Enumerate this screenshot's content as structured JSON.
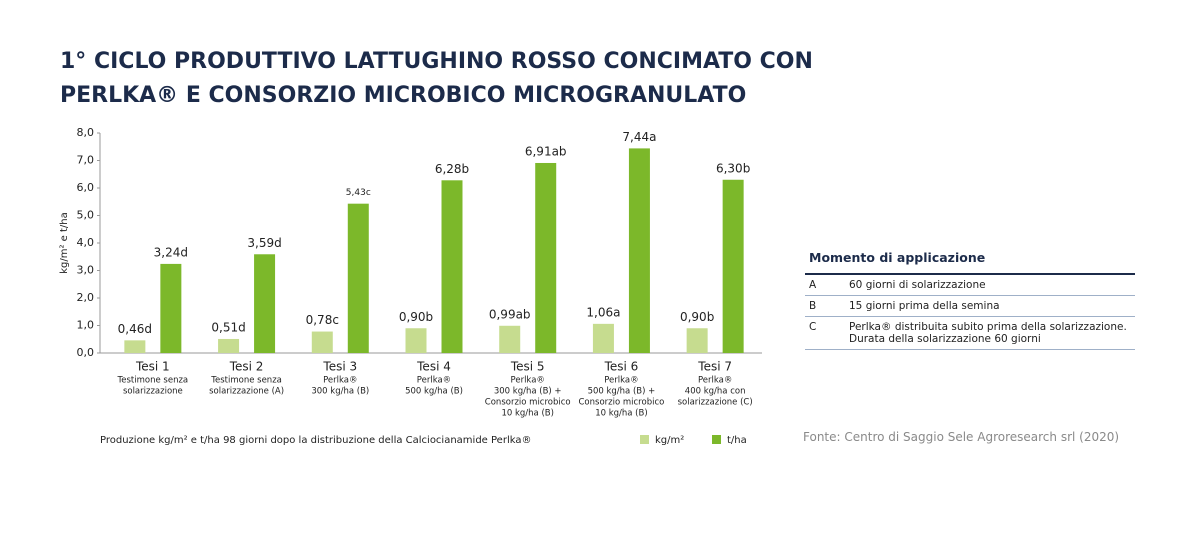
{
  "chart_data": {
    "type": "bar",
    "title": [
      "1° CICLO PRODUTTIVO LATTUGHINO ROSSO CONCIMATO CON",
      "PERLKA® E CONSORZIO MICROBICO MICROGRANULATO"
    ],
    "y_label": "kg/m² e t/ha",
    "caption": "Produzione kg/m² e t/ha 98 giorni dopo la distribuzione della Calciocianamide Perlka®",
    "categories": [
      "Tesi 1",
      "Tesi 2",
      "Tesi 3",
      "Tesi 4",
      "Tesi 5",
      "Tesi 6",
      "Tesi 7"
    ],
    "category_notes": [
      [
        "Testimone senza",
        "solarizzazione"
      ],
      [
        "Testimone senza",
        "solarizzazione (A)"
      ],
      [
        "Perlka®",
        "300 kg/ha (B)"
      ],
      [
        "Perlka®",
        "500 kg/ha (B)"
      ],
      [
        "Perlka®",
        "300 kg/ha (B) +",
        "Consorzio microbico",
        "10 kg/ha (B)"
      ],
      [
        "Perlka®",
        "500 kg/ha (B) +",
        "Consorzio microbico",
        "10 kg/ha (B)"
      ],
      [
        "Perlka®",
        "400 kg/ha con",
        "solarizzazione (C)"
      ]
    ],
    "series": [
      {
        "name": "kg/m²",
        "color": "#c6dc8f",
        "values": [
          0.46,
          0.51,
          0.78,
          0.9,
          0.99,
          1.06,
          0.9
        ],
        "value_labels": [
          "0,46d",
          "0,51d",
          "0,78c",
          "0,90b",
          "0,99ab",
          "1,06a",
          "0,90b"
        ]
      },
      {
        "name": "t/ha",
        "color": "#7cb82a",
        "values": [
          3.24,
          3.59,
          5.43,
          6.28,
          6.91,
          7.44,
          6.3
        ],
        "value_labels": [
          "3,24d",
          "3,59d",
          "5,43c",
          "6,28b",
          "6,91ab",
          "7,44a",
          "6,30b"
        ]
      }
    ],
    "ylim": [
      0,
      8
    ],
    "yticks": [
      {
        "value": 0,
        "label": "0,0"
      },
      {
        "value": 1,
        "label": "1,0"
      },
      {
        "value": 2,
        "label": "2,0"
      },
      {
        "value": 3,
        "label": "3,0"
      },
      {
        "value": 4,
        "label": "4,0"
      },
      {
        "value": 5,
        "label": "5,0"
      },
      {
        "value": 6,
        "label": "6,0"
      },
      {
        "value": 7,
        "label": "7,0"
      },
      {
        "value": 8,
        "label": "8,0"
      }
    ]
  },
  "legend_table": {
    "header": "Momento di applicazione",
    "rows": [
      [
        "A",
        "60 giorni di solarizzazione"
      ],
      [
        "B",
        "15 giorni prima della semina"
      ],
      [
        "C",
        "Perlka® distribuita subito prima della solarizzazione. Durata della solarizzazione 60 giorni"
      ]
    ]
  },
  "source": "Fonte: Centro di Saggio Sele Agroresearch srl (2020)"
}
